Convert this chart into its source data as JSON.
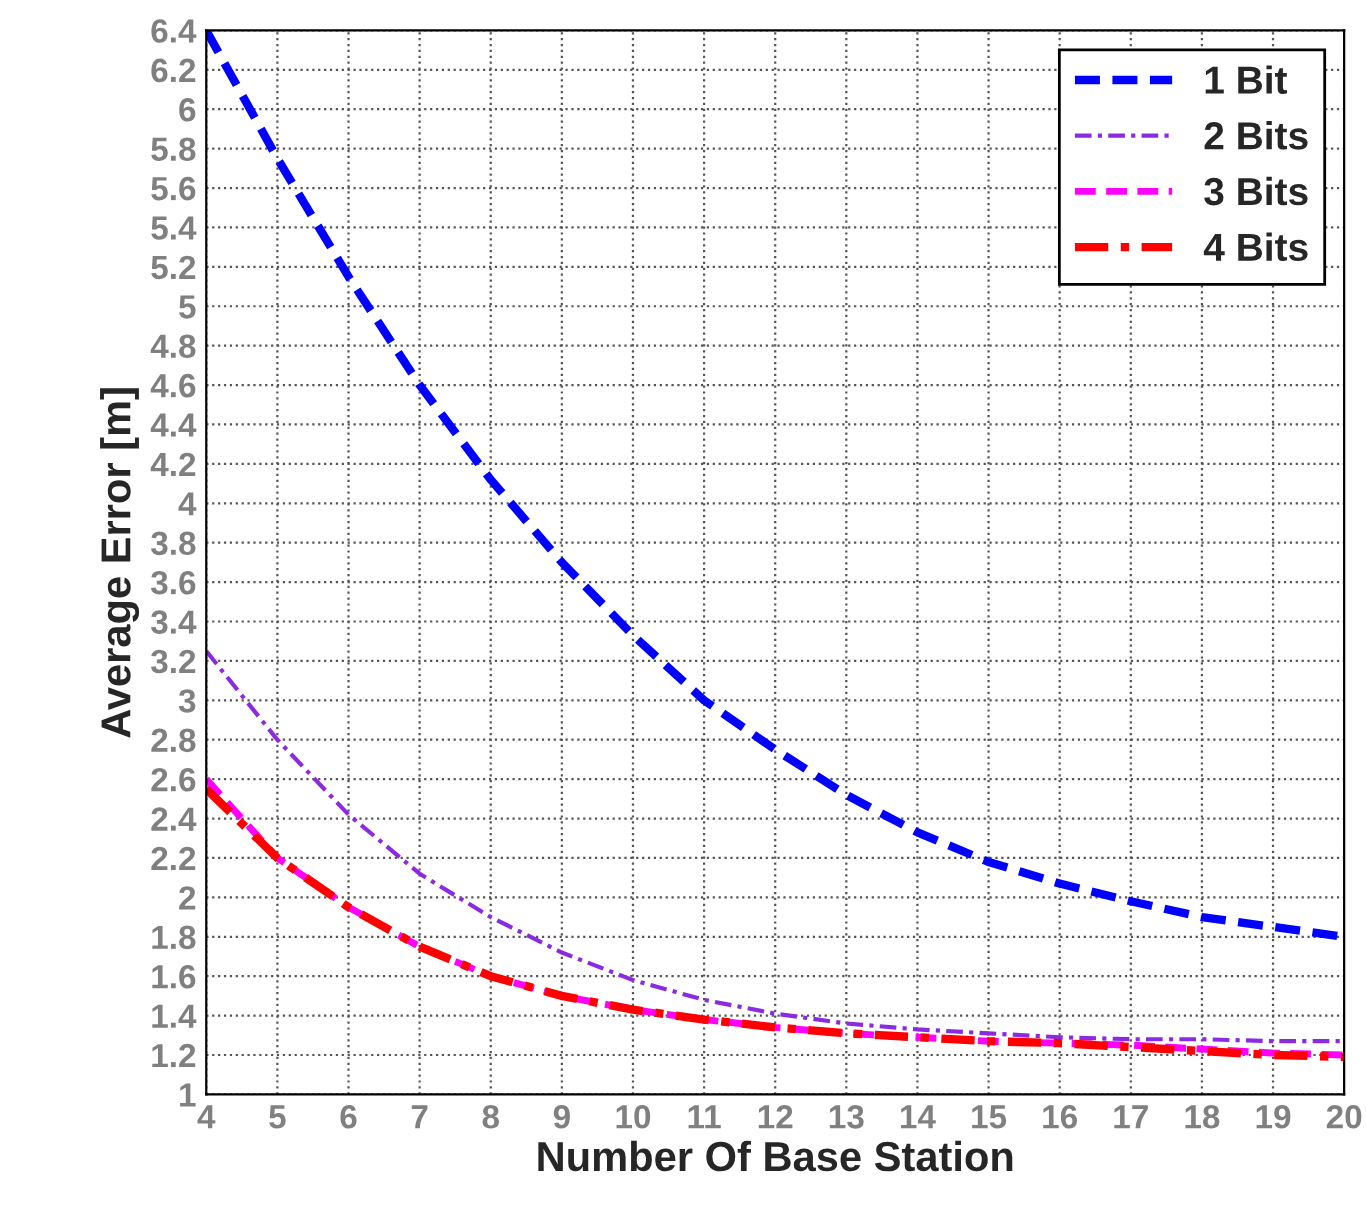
{
  "chart_data": {
    "type": "line",
    "xlabel": "Number Of Base Station",
    "ylabel": "Average Error [m]",
    "x": [
      4,
      5,
      6,
      7,
      8,
      9,
      10,
      11,
      12,
      13,
      14,
      15,
      16,
      17,
      18,
      19,
      20
    ],
    "xlim": [
      4,
      20
    ],
    "xticks": [
      4,
      5,
      6,
      7,
      8,
      9,
      10,
      11,
      12,
      13,
      14,
      15,
      16,
      17,
      18,
      19,
      20
    ],
    "ylim": [
      1,
      6.4
    ],
    "yticks": [
      1,
      1.2,
      1.4,
      1.6,
      1.8,
      2,
      2.2,
      2.4,
      2.6,
      2.8,
      3,
      3.2,
      3.4,
      3.6,
      3.8,
      4,
      4.2,
      4.4,
      4.6,
      4.8,
      5,
      5.2,
      5.4,
      5.6,
      5.8,
      6,
      6.2,
      6.4
    ],
    "grid": true,
    "legend": "top right",
    "marker": "none",
    "series": [
      {
        "name": "1 Bit",
        "color": "#0000ff",
        "line_style": "dashed",
        "values": [
          6.4,
          5.75,
          5.15,
          4.6,
          4.12,
          3.7,
          3.33,
          3.0,
          2.75,
          2.52,
          2.33,
          2.18,
          2.07,
          1.98,
          1.9,
          1.85,
          1.8
        ]
      },
      {
        "name": "2 Bits",
        "color": "#8a2be2",
        "line_style": "dashdot",
        "values": [
          3.25,
          2.8,
          2.42,
          2.12,
          1.9,
          1.72,
          1.58,
          1.48,
          1.41,
          1.36,
          1.33,
          1.31,
          1.29,
          1.28,
          1.28,
          1.27,
          1.27
        ]
      },
      {
        "name": "3 Bits",
        "color": "#ff00ff",
        "line_style": "dashed",
        "values": [
          2.6,
          2.2,
          1.95,
          1.75,
          1.6,
          1.5,
          1.43,
          1.38,
          1.34,
          1.31,
          1.29,
          1.27,
          1.26,
          1.25,
          1.23,
          1.21,
          1.2
        ]
      },
      {
        "name": "4 Bits",
        "color": "#ff0000",
        "line_style": "dashdot",
        "values": [
          2.55,
          2.2,
          1.95,
          1.75,
          1.6,
          1.5,
          1.43,
          1.38,
          1.34,
          1.31,
          1.29,
          1.27,
          1.26,
          1.24,
          1.22,
          1.2,
          1.19
        ]
      }
    ]
  }
}
